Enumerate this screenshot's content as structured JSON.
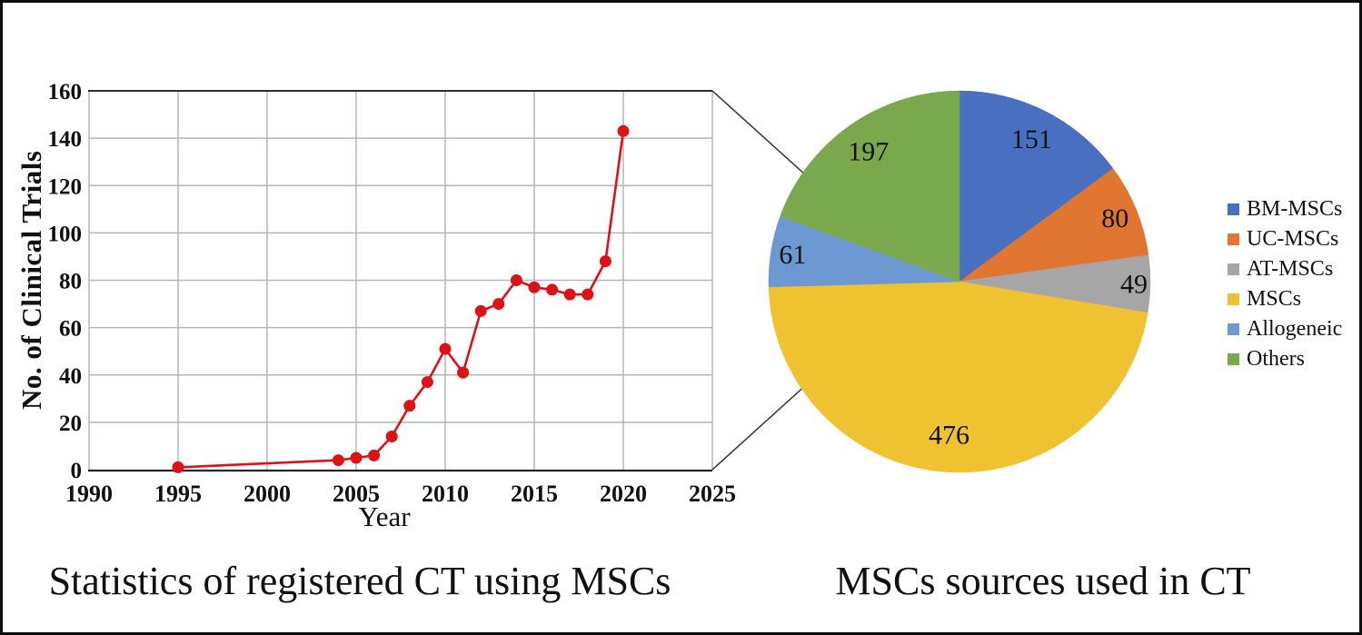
{
  "figure": {
    "background": "#ffffff",
    "border_color": "#0d0d0d"
  },
  "chart_data": [
    {
      "type": "line",
      "caption": "Statistics of registered CT using MSCs",
      "xlabel": "Year",
      "ylabel": "No. of Clinical Trials",
      "xlim": [
        1990,
        2025
      ],
      "ylim": [
        0,
        160
      ],
      "xticks": [
        1990,
        1995,
        2000,
        2005,
        2010,
        2015,
        2020,
        2025
      ],
      "yticks": [
        0,
        20,
        40,
        60,
        80,
        100,
        120,
        140,
        160
      ],
      "grid": true,
      "series": [
        {
          "name": "No. of Clinical Trials",
          "color": "#dd1217",
          "marker": "circle",
          "x": [
            1995,
            2004,
            2005,
            2006,
            2007,
            2008,
            2009,
            2010,
            2011,
            2012,
            2013,
            2014,
            2015,
            2016,
            2017,
            2018,
            2019,
            2020
          ],
          "y": [
            1,
            4,
            5,
            6,
            14,
            27,
            37,
            51,
            41,
            67,
            70,
            80,
            77,
            76,
            74,
            74,
            88,
            143
          ]
        }
      ]
    },
    {
      "type": "pie",
      "caption": "MSCs sources used in CT",
      "legend_position": "right",
      "start_angle": "12-o'clock, clockwise",
      "slices": [
        {
          "label": "BM-MSCs",
          "value": 151,
          "color": "#4970C0"
        },
        {
          "label": "UC-MSCs",
          "value": 80,
          "color": "#E0762F"
        },
        {
          "label": "AT-MSCs",
          "value": 49,
          "color": "#A6A6A6"
        },
        {
          "label": "MSCs",
          "value": 476,
          "color": "#EFC231"
        },
        {
          "label": "Allogeneic",
          "value": 61,
          "color": "#6C99D2"
        },
        {
          "label": "Others",
          "value": 197,
          "color": "#7AA84C"
        }
      ]
    }
  ]
}
